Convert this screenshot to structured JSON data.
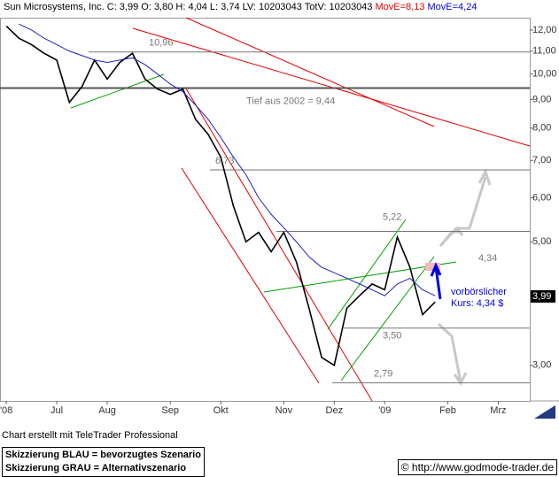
{
  "chart_data": {
    "type": "line",
    "title": "Sun Microsystems, Inc. C: 3,99 O: 3,80 H: 4,04 L: 3,74 LV: 10203043 TotV: 10203043",
    "ma_labels": [
      {
        "label": "MovE=8,13",
        "color": "#e00000"
      },
      {
        "label": "MovE=4,24",
        "color": "#0000e0"
      }
    ],
    "log_scale": true,
    "categories": [
      "'08",
      null,
      null,
      null,
      "Jul",
      null,
      null,
      null,
      "Aug",
      null,
      null,
      null,
      null,
      "Sep",
      null,
      null,
      null,
      "Okt",
      null,
      null,
      null,
      null,
      "Nov",
      null,
      null,
      null,
      "Dez",
      null,
      null,
      null,
      "'09",
      null,
      null,
      null,
      null,
      "Feb",
      null,
      null,
      null,
      "Mrz",
      null,
      null
    ],
    "series": [
      {
        "name": "Kurs",
        "color": "#000000",
        "values": [
          12.2,
          11.6,
          11.3,
          10.9,
          10.6,
          8.9,
          9.5,
          10.6,
          9.8,
          10.5,
          10.9,
          9.8,
          9.4,
          9.2,
          9.4,
          8.3,
          7.8,
          7.1,
          5.8,
          5.0,
          5.2,
          4.8,
          5.2,
          4.6,
          3.8,
          3.1,
          3.0,
          3.8,
          4.0,
          4.2,
          4.1,
          5.1,
          4.5,
          3.7,
          3.9,
          null,
          null,
          null,
          null,
          null,
          null,
          null
        ]
      },
      {
        "name": "MovE",
        "color": "#2020c0",
        "values": [
          null,
          12.3,
          12.0,
          11.6,
          11.3,
          11.0,
          10.8,
          10.6,
          10.5,
          10.6,
          10.7,
          10.4,
          10.0,
          9.6,
          9.3,
          8.8,
          8.3,
          7.7,
          7.1,
          6.6,
          6.0,
          5.6,
          5.3,
          5.0,
          4.7,
          4.5,
          4.4,
          4.3,
          4.2,
          4.1,
          4.0,
          4.2,
          4.3,
          4.1,
          4.0,
          null,
          null,
          null,
          null,
          null,
          null,
          null
        ]
      }
    ],
    "ylim": [
      2.59,
      12.63
    ],
    "yticks": [
      {
        "value": 3,
        "label": "3,00"
      },
      {
        "value": 4,
        "label": "4,00"
      },
      {
        "value": 5,
        "label": "5,00"
      },
      {
        "value": 6,
        "label": "6,00"
      },
      {
        "value": 7,
        "label": "7,00"
      },
      {
        "value": 8,
        "label": "8,00"
      },
      {
        "value": 9,
        "label": "9,00"
      },
      {
        "value": 10,
        "label": "10,00"
      },
      {
        "value": 11,
        "label": "11,00"
      },
      {
        "value": 12,
        "label": "12,00"
      }
    ],
    "last_price": {
      "value": 3.99,
      "label": "3,99"
    },
    "levels": [
      {
        "value": 10.96,
        "label": "10,96"
      },
      {
        "value": 9.44,
        "label": "Tief aus 2002 = 9,44"
      },
      {
        "value": 6.73,
        "label": "6,73"
      },
      {
        "value": 5.22,
        "label": "5,22"
      },
      {
        "value": 4.34,
        "label": "4,34"
      },
      {
        "value": 3.5,
        "label": "3,50"
      },
      {
        "value": 2.79,
        "label": "2,79"
      }
    ],
    "annotation": [
      "vorbörslicher",
      "Kurs:  4,34 $"
    ]
  },
  "footer": {
    "credit": "Chart erstellt mit TeleTrader Professional",
    "legend_blue": "Skizzierung BLAU = bevorzugtes Szenario",
    "legend_grey": "Skizzierung GRAU = Alternativszenario",
    "source": "© http://www.godmode-trader.de"
  }
}
